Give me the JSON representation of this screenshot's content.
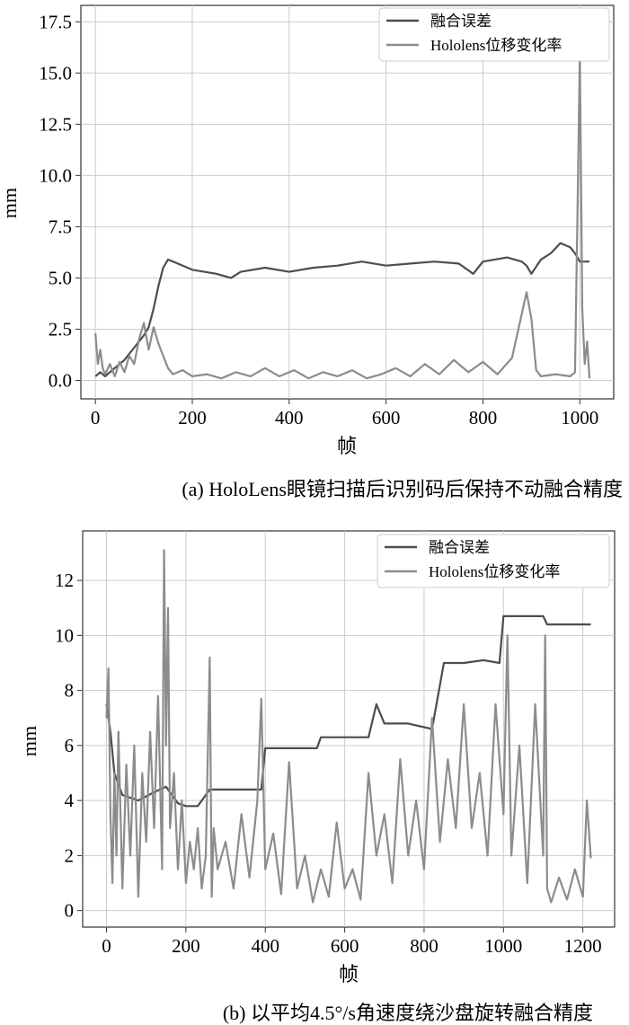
{
  "chart_data": [
    {
      "type": "line",
      "caption": "(a) HoloLens眼镜扫描后识别码后保持不动融合精度",
      "xlabel": "帧",
      "ylabel": "mm",
      "xlim": [
        -30,
        1070
      ],
      "ylim": [
        -0.9,
        18.3
      ],
      "xticks": [
        0,
        200,
        400,
        600,
        800,
        1000
      ],
      "yticks": [
        0.0,
        2.5,
        5.0,
        7.5,
        10.0,
        12.5,
        15.0,
        17.5
      ],
      "ytick_labels": [
        "0.0",
        "2.5",
        "5.0",
        "7.5",
        "10.0",
        "12.5",
        "15.0",
        "17.5"
      ],
      "grid": true,
      "legend_position": "top-right",
      "series": [
        {
          "name": "融合误差",
          "color": "#4d4d4d",
          "x": [
            0,
            10,
            20,
            40,
            60,
            80,
            100,
            110,
            120,
            130,
            140,
            150,
            170,
            200,
            250,
            280,
            300,
            350,
            400,
            450,
            500,
            550,
            600,
            650,
            700,
            750,
            780,
            800,
            850,
            880,
            890,
            900,
            920,
            940,
            960,
            980,
            990,
            1000,
            1010,
            1020
          ],
          "y": [
            0.2,
            0.4,
            0.2,
            0.6,
            1.0,
            1.6,
            2.2,
            2.6,
            3.5,
            4.6,
            5.5,
            5.9,
            5.7,
            5.4,
            5.2,
            5.0,
            5.3,
            5.5,
            5.3,
            5.5,
            5.6,
            5.8,
            5.6,
            5.7,
            5.8,
            5.7,
            5.2,
            5.8,
            6.0,
            5.8,
            5.6,
            5.2,
            5.9,
            6.2,
            6.7,
            6.5,
            6.2,
            5.8,
            5.8,
            5.8
          ]
        },
        {
          "name": "Hololens位移变化率",
          "color": "#8c8c8c",
          "x": [
            0,
            5,
            10,
            15,
            20,
            30,
            40,
            50,
            60,
            70,
            80,
            90,
            100,
            110,
            120,
            130,
            140,
            150,
            160,
            180,
            200,
            230,
            260,
            290,
            320,
            350,
            380,
            410,
            440,
            470,
            500,
            530,
            560,
            590,
            620,
            650,
            680,
            710,
            740,
            770,
            800,
            830,
            860,
            890,
            900,
            910,
            920,
            950,
            980,
            990,
            995,
            1000,
            1005,
            1010,
            1015,
            1020
          ],
          "y": [
            2.3,
            0.8,
            1.5,
            0.6,
            0.3,
            0.8,
            0.2,
            0.9,
            0.4,
            1.2,
            0.8,
            2.0,
            2.8,
            1.5,
            2.6,
            1.8,
            1.2,
            0.6,
            0.3,
            0.5,
            0.2,
            0.3,
            0.1,
            0.4,
            0.2,
            0.6,
            0.2,
            0.5,
            0.1,
            0.4,
            0.2,
            0.5,
            0.1,
            0.3,
            0.6,
            0.2,
            0.8,
            0.3,
            1.0,
            0.4,
            0.9,
            0.3,
            1.1,
            4.3,
            3.0,
            0.5,
            0.2,
            0.3,
            0.2,
            0.4,
            8.0,
            16.0,
            3.5,
            0.8,
            1.9,
            0.1
          ]
        }
      ]
    },
    {
      "type": "line",
      "caption": "(b) 以平均4.5°/s角速度绕沙盘旋转融合精度",
      "xlabel": "帧",
      "ylabel": "mm",
      "xlim": [
        -60,
        1280
      ],
      "ylim": [
        -0.6,
        13.8
      ],
      "xticks": [
        0,
        200,
        400,
        600,
        800,
        1000,
        1200
      ],
      "yticks": [
        0,
        2,
        4,
        6,
        8,
        10,
        12
      ],
      "ytick_labels": [
        "0",
        "2",
        "4",
        "6",
        "8",
        "10",
        "12"
      ],
      "grid": true,
      "legend_position": "top-right",
      "series": [
        {
          "name": "融合误差",
          "color": "#4d4d4d",
          "x": [
            0,
            10,
            20,
            40,
            80,
            120,
            150,
            180,
            200,
            230,
            260,
            300,
            350,
            390,
            400,
            450,
            530,
            540,
            600,
            660,
            680,
            700,
            760,
            820,
            850,
            900,
            950,
            990,
            1000,
            1050,
            1100,
            1110,
            1220
          ],
          "y": [
            7.5,
            6.5,
            5.0,
            4.2,
            4.0,
            4.3,
            4.5,
            3.9,
            3.8,
            3.8,
            4.4,
            4.4,
            4.4,
            4.4,
            5.9,
            5.9,
            5.9,
            6.3,
            6.3,
            6.3,
            7.5,
            6.8,
            6.8,
            6.6,
            9.0,
            9.0,
            9.1,
            9.0,
            10.7,
            10.7,
            10.7,
            10.4,
            10.4
          ]
        },
        {
          "name": "Hololens位移变化率",
          "color": "#8c8c8c",
          "x": [
            0,
            5,
            10,
            15,
            20,
            25,
            30,
            40,
            50,
            60,
            70,
            80,
            90,
            100,
            110,
            120,
            130,
            140,
            145,
            150,
            155,
            160,
            170,
            180,
            190,
            200,
            210,
            220,
            230,
            240,
            250,
            260,
            265,
            270,
            280,
            300,
            320,
            340,
            360,
            380,
            390,
            400,
            420,
            440,
            460,
            480,
            500,
            520,
            540,
            560,
            580,
            600,
            620,
            640,
            660,
            680,
            700,
            720,
            740,
            760,
            780,
            800,
            820,
            840,
            860,
            880,
            900,
            920,
            940,
            960,
            980,
            1000,
            1010,
            1020,
            1040,
            1060,
            1080,
            1100,
            1105,
            1110,
            1120,
            1140,
            1160,
            1180,
            1200,
            1210,
            1220
          ],
          "y": [
            7.0,
            8.8,
            3.5,
            1.0,
            5.0,
            2.0,
            6.5,
            0.8,
            5.3,
            2.0,
            6.0,
            0.5,
            5.0,
            2.5,
            6.5,
            3.0,
            7.8,
            1.5,
            13.1,
            6.0,
            11.0,
            3.0,
            5.0,
            1.5,
            4.0,
            1.0,
            2.5,
            1.5,
            3.0,
            0.8,
            2.0,
            9.2,
            0.5,
            3.0,
            1.5,
            2.5,
            0.8,
            3.5,
            1.2,
            4.0,
            7.7,
            1.5,
            2.8,
            0.6,
            5.4,
            0.8,
            2.0,
            0.3,
            1.5,
            0.5,
            3.2,
            0.8,
            1.5,
            0.4,
            5.0,
            2.0,
            3.5,
            1.0,
            5.5,
            2.0,
            4.0,
            1.5,
            7.0,
            2.5,
            5.5,
            3.0,
            7.5,
            3.0,
            5.0,
            2.0,
            7.5,
            3.5,
            10.0,
            2.0,
            6.0,
            1.0,
            7.5,
            2.0,
            10.0,
            0.8,
            0.3,
            1.2,
            0.4,
            1.5,
            0.5,
            4.0,
            1.9
          ]
        }
      ]
    }
  ]
}
